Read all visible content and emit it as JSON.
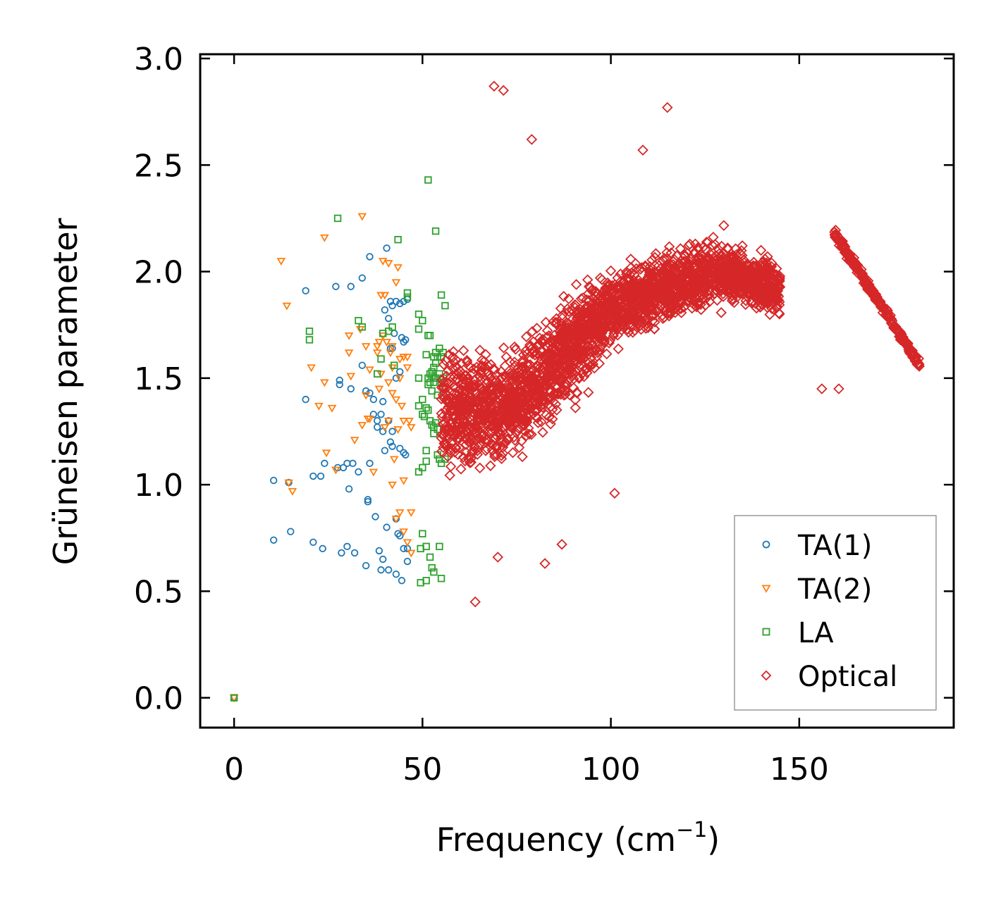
{
  "chart_data": {
    "type": "scatter",
    "title": "",
    "xlabel": "Frequency (cm",
    "xlabel_sup": "−1",
    "xlabel_close": ")",
    "ylabel": "Grüneisen parameter",
    "xlim": [
      -9,
      191
    ],
    "ylim": [
      -0.14,
      3.02
    ],
    "x_ticks": [
      0,
      50,
      100,
      150
    ],
    "y_ticks": [
      0.0,
      0.5,
      1.0,
      1.5,
      2.0,
      2.5,
      3.0
    ],
    "x_tick_labels": [
      "0",
      "50",
      "100",
      "150"
    ],
    "y_tick_labels": [
      "0.0",
      "0.5",
      "1.0",
      "1.5",
      "2.0",
      "2.5",
      "3.0"
    ],
    "legend_position": "lower-right",
    "series": [
      {
        "name": "TA(1)",
        "marker": "circle",
        "color": "#1f77b4",
        "points": [
          [
            0,
            0
          ],
          [
            10.5,
            1.02
          ],
          [
            10.5,
            0.74
          ],
          [
            14.5,
            1.01
          ],
          [
            15,
            0.78
          ],
          [
            19,
            1.91
          ],
          [
            19,
            1.4
          ],
          [
            21,
            1.04
          ],
          [
            21,
            0.73
          ],
          [
            23,
            1.04
          ],
          [
            23.5,
            0.7
          ],
          [
            24,
            1.1
          ],
          [
            27,
            1.93
          ],
          [
            27.5,
            1.08
          ],
          [
            28,
            1.49
          ],
          [
            28,
            1.47
          ],
          [
            28.5,
            0.68
          ],
          [
            29,
            1.08
          ],
          [
            30,
            1.1
          ],
          [
            30,
            0.71
          ],
          [
            30.5,
            0.98
          ],
          [
            31,
            1.45
          ],
          [
            31,
            1.93
          ],
          [
            31.5,
            1.1
          ],
          [
            32,
            0.68
          ],
          [
            33,
            1.06
          ],
          [
            34,
            1.56
          ],
          [
            34,
            1.97
          ],
          [
            35,
            1.44
          ],
          [
            35,
            0.62
          ],
          [
            35.5,
            0.93
          ],
          [
            35.5,
            0.92
          ],
          [
            36,
            2.07
          ],
          [
            36,
            1.43
          ],
          [
            36,
            1.1
          ],
          [
            37,
            1.4
          ],
          [
            37,
            1.33
          ],
          [
            37.5,
            0.85
          ],
          [
            38,
            1.27
          ],
          [
            38,
            1.3
          ],
          [
            38.5,
            0.69
          ],
          [
            39,
            1.33
          ],
          [
            39,
            0.6
          ],
          [
            39.5,
            1.25
          ],
          [
            39.5,
            1.39
          ],
          [
            39.5,
            0.65
          ],
          [
            40,
            1.16
          ],
          [
            40,
            1.82
          ],
          [
            40.5,
            0.8
          ],
          [
            40.5,
            2.11
          ],
          [
            41,
            1.78
          ],
          [
            41,
            1.3
          ],
          [
            41,
            0.6
          ],
          [
            41.5,
            1.64
          ],
          [
            41.5,
            1.86
          ],
          [
            41.5,
            1.2
          ],
          [
            42,
            1.84
          ],
          [
            42,
            1.64
          ],
          [
            42,
            1.25
          ],
          [
            42,
            1.18
          ],
          [
            42.5,
            1.71
          ],
          [
            43,
            1.86
          ],
          [
            43,
            1.5
          ],
          [
            43,
            0.84
          ],
          [
            43,
            0.58
          ],
          [
            43.5,
            0.77
          ],
          [
            44,
            1.17
          ],
          [
            44,
            1.85
          ],
          [
            44,
            1.53
          ],
          [
            44,
            0.76
          ],
          [
            44.5,
            1.69
          ],
          [
            44.5,
            0.55
          ],
          [
            45,
            1.86
          ],
          [
            45,
            1.67
          ],
          [
            45,
            1.15
          ],
          [
            45,
            0.7
          ],
          [
            45.5,
            1.14
          ],
          [
            45.5,
            1.68
          ],
          [
            46,
            1.87
          ],
          [
            46,
            0.7
          ],
          [
            46,
            0.64
          ]
        ]
      },
      {
        "name": "TA(2)",
        "marker": "triangle-down",
        "color": "#ff7f0e",
        "points": [
          [
            0,
            0
          ],
          [
            12.5,
            2.05
          ],
          [
            14,
            1.84
          ],
          [
            14.5,
            1.01
          ],
          [
            15.5,
            0.97
          ],
          [
            20.5,
            1.55
          ],
          [
            22.5,
            1.37
          ],
          [
            24,
            1.48
          ],
          [
            24,
            2.16
          ],
          [
            24.5,
            1.15
          ],
          [
            26,
            1.36
          ],
          [
            27,
            1.07
          ],
          [
            30.5,
            1.7
          ],
          [
            30.5,
            1.62
          ],
          [
            31,
            1.51
          ],
          [
            32,
            1.21
          ],
          [
            33.5,
            1.73
          ],
          [
            34,
            1.28
          ],
          [
            34,
            2.26
          ],
          [
            35,
            1.65
          ],
          [
            35,
            1.42
          ],
          [
            35.5,
            1.31
          ],
          [
            36,
            1.54
          ],
          [
            36,
            1.31
          ],
          [
            37,
            1.06
          ],
          [
            38,
            1.62
          ],
          [
            38,
            1.65
          ],
          [
            38.5,
            1.45
          ],
          [
            38.5,
            1.67
          ],
          [
            39,
            1.89
          ],
          [
            39,
            1.52
          ],
          [
            39.5,
            2.05
          ],
          [
            39.5,
            1.7
          ],
          [
            40,
            1.89
          ],
          [
            40,
            1.27
          ],
          [
            40.5,
            1.67
          ],
          [
            41,
            2.04
          ],
          [
            41,
            1.48
          ],
          [
            41,
            1.3
          ],
          [
            41.5,
            1.62
          ],
          [
            42,
            1.65
          ],
          [
            42,
            1.55
          ],
          [
            42,
            1.43
          ],
          [
            42,
            1.0
          ],
          [
            42.5,
            1.12
          ],
          [
            43,
            1.95
          ],
          [
            43,
            1.4
          ],
          [
            43,
            0.84
          ],
          [
            43.5,
            2.02
          ],
          [
            43.5,
            1.26
          ],
          [
            44,
            1.5
          ],
          [
            44,
            1.59
          ],
          [
            44,
            0.87
          ],
          [
            44.5,
            1.37
          ],
          [
            45,
            1.6
          ],
          [
            45,
            1.3
          ],
          [
            45,
            0.78
          ],
          [
            45,
            1.02
          ],
          [
            46,
            1.6
          ],
          [
            46,
            1.55
          ],
          [
            46,
            0.73
          ],
          [
            46.5,
            1.3
          ],
          [
            47,
            1.27
          ],
          [
            47,
            0.87
          ],
          [
            47,
            0.68
          ]
        ]
      },
      {
        "name": "LA",
        "marker": "square",
        "color": "#2ca02c",
        "points": [
          [
            0,
            0
          ],
          [
            20,
            1.72
          ],
          [
            20,
            1.68
          ],
          [
            27.5,
            2.25
          ],
          [
            33,
            1.77
          ],
          [
            34,
            1.74
          ],
          [
            38,
            1.52
          ],
          [
            39,
            1.59
          ],
          [
            39.5,
            1.71
          ],
          [
            41,
            1.72
          ],
          [
            42,
            1.74
          ],
          [
            42.5,
            1.56
          ],
          [
            43.5,
            2.15
          ],
          [
            46,
            1.9
          ],
          [
            46,
            1.88
          ],
          [
            49,
            1.8
          ],
          [
            49,
            1.73
          ],
          [
            49,
            1.5
          ],
          [
            49,
            1.37
          ],
          [
            49,
            1.06
          ],
          [
            49.5,
            0.7
          ],
          [
            49.5,
            0.54
          ],
          [
            50,
            1.77
          ],
          [
            50,
            1.4
          ],
          [
            50,
            1.33
          ],
          [
            50,
            1.08
          ],
          [
            50,
            0.77
          ],
          [
            50.5,
            1.32
          ],
          [
            51,
            1.61
          ],
          [
            51,
            1.36
          ],
          [
            51,
            1.16
          ],
          [
            51,
            1.11
          ],
          [
            51,
            0.71
          ],
          [
            51,
            0.55
          ],
          [
            51.5,
            1.7
          ],
          [
            51.5,
            1.5
          ],
          [
            51.5,
            1.47
          ],
          [
            51.5,
            1.35
          ],
          [
            51.5,
            2.43
          ],
          [
            52,
            1.7
          ],
          [
            52,
            1.52
          ],
          [
            52,
            1.48
          ],
          [
            52,
            1.3
          ],
          [
            52,
            0.66
          ],
          [
            52.5,
            1.53
          ],
          [
            52.5,
            1.51
          ],
          [
            52.5,
            1.44
          ],
          [
            52.5,
            1.28
          ],
          [
            52.5,
            0.61
          ],
          [
            53,
            1.6
          ],
          [
            53,
            1.55
          ],
          [
            53,
            1.5
          ],
          [
            53,
            1.48
          ],
          [
            53,
            1.27
          ],
          [
            53,
            1.24
          ],
          [
            53,
            0.59
          ],
          [
            53.5,
            2.19
          ],
          [
            53.5,
            1.62
          ],
          [
            53.5,
            1.57
          ],
          [
            53.5,
            1.5
          ],
          [
            53.5,
            1.29
          ],
          [
            54,
            1.6
          ],
          [
            54,
            1.42
          ],
          [
            54,
            1.26
          ],
          [
            54,
            1.14
          ],
          [
            54.5,
            1.64
          ],
          [
            54.5,
            1.52
          ],
          [
            54.5,
            1.12
          ],
          [
            54.5,
            0.71
          ],
          [
            55,
            1.89
          ],
          [
            55,
            1.6
          ],
          [
            55,
            1.48
          ],
          [
            55,
            1.1
          ],
          [
            55,
            0.56
          ],
          [
            55.5,
            1.62
          ],
          [
            55.5,
            1.5
          ],
          [
            56,
            1.84
          ],
          [
            56,
            1.45
          ],
          [
            56,
            1.12
          ]
        ]
      },
      {
        "name": "Optical",
        "marker": "diamond",
        "color": "#d62728",
        "points": []
      }
    ],
    "optical_band": {
      "description": "dense red diamond cloud between ~55 and ~145 cm-1 plus a tail from 159 to 182 cm-1",
      "x_range": [
        55,
        182
      ],
      "y_range": [
        0.45,
        2.87
      ],
      "outliers": [
        [
          69,
          2.87
        ],
        [
          71.5,
          2.85
        ],
        [
          79,
          2.62
        ],
        [
          115,
          2.77
        ],
        [
          108.5,
          2.57
        ],
        [
          64,
          0.45
        ],
        [
          101,
          0.96
        ],
        [
          82.5,
          0.63
        ],
        [
          87,
          0.72
        ],
        [
          70,
          0.66
        ],
        [
          156,
          1.45
        ],
        [
          160.5,
          1.45
        ]
      ]
    }
  },
  "legend": {
    "items": [
      {
        "label": "TA(1)",
        "marker": "circle",
        "color": "#1f77b4"
      },
      {
        "label": "TA(2)",
        "marker": "triangle-down",
        "color": "#ff7f0e"
      },
      {
        "label": "LA",
        "marker": "square",
        "color": "#2ca02c"
      },
      {
        "label": "Optical",
        "marker": "diamond",
        "color": "#d62728"
      }
    ]
  }
}
